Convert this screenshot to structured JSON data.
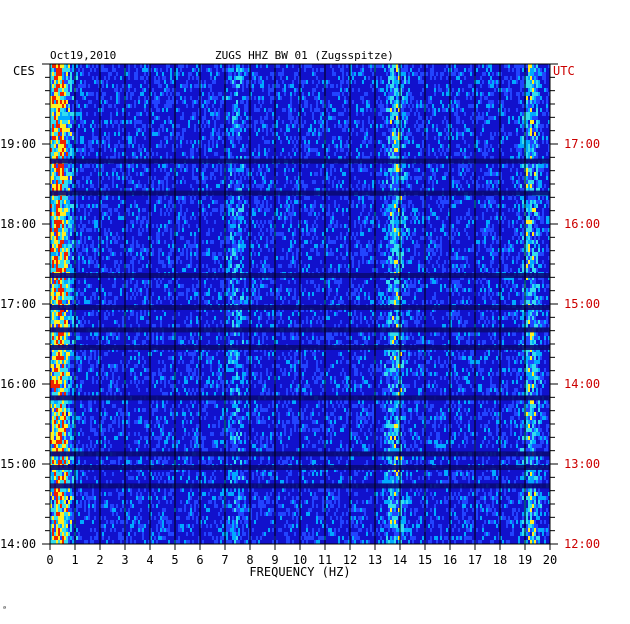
{
  "header": {
    "date": "Oct19,2010",
    "station": "ZUGS HHZ BW 01 (Zugsspitze)",
    "left_zone": "CES",
    "right_zone": "UTC"
  },
  "chart_data": {
    "type": "heatmap",
    "title": "ZUGS HHZ BW 01 (Zugsspitze)",
    "xlabel": "FREQUENCY (HZ)",
    "xlim": [
      0,
      20
    ],
    "x_ticks": [
      "0",
      "1",
      "2",
      "3",
      "4",
      "5",
      "6",
      "7",
      "8",
      "9",
      "10",
      "11",
      "12",
      "13",
      "14",
      "15",
      "16",
      "17",
      "18",
      "19",
      "20"
    ],
    "ylim_hours": [
      14,
      20
    ],
    "y_ticks_left": [
      "19:00",
      "18:00",
      "17:00",
      "16:00",
      "15:00",
      "14:00"
    ],
    "y_ticks_right": [
      "17:00",
      "16:00",
      "15:00",
      "14:00",
      "13:00",
      "12:00"
    ],
    "y_tick_hours": [
      19,
      18,
      17,
      16,
      15,
      14
    ],
    "colors": {
      "background": "#1111cc",
      "dark_band": "#0a0a77",
      "low": "#2244ff",
      "mid": "#00aaff",
      "cyan": "#33ddee",
      "yellow": "#ffee22",
      "red": "#ee2200",
      "grid": "#000000",
      "utc_text": "#cc0000"
    },
    "dark_band_hours": [
      18.78,
      18.38,
      17.35,
      16.95,
      16.67,
      16.45,
      15.82,
      15.12,
      14.95,
      14.72
    ],
    "activity_features": [
      {
        "x": 0.3,
        "intensity": "high"
      },
      {
        "x": 13.8,
        "intensity": "medium"
      },
      {
        "x": 7.4,
        "intensity": "low"
      },
      {
        "x": 19.2,
        "intensity": "medium"
      }
    ]
  },
  "footer_mark": "ᵃ"
}
